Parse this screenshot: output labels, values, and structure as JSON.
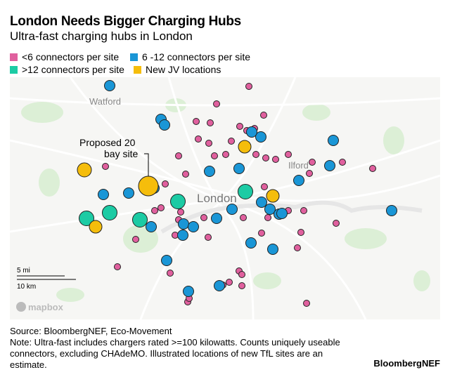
{
  "title": "London Needs Bigger Charging Hubs",
  "subtitle": "Ultra-fast charging hubs in London",
  "legend": [
    {
      "label": "<6 connectors per site",
      "color": "#e0609e"
    },
    {
      "label": "6 -12 connectors per site",
      "color": "#1a96d6"
    },
    {
      "label": ">12 connectors per site",
      "color": "#1ccba4"
    },
    {
      "label": "New JV locations",
      "color": "#f5bd0b"
    }
  ],
  "map": {
    "places": {
      "watford": "Watford",
      "london": "London",
      "ilford": "Ilford"
    },
    "annotation": "Proposed 20\nbay site",
    "annotation_line1": "Proposed 20",
    "annotation_line2": "bay site",
    "scale": {
      "miles": "5 mi",
      "km": "10 km"
    },
    "attribution": "mapbox"
  },
  "source": "Source: BloombergNEF, Eco-Movement",
  "note": "Note: Ultra-fast includes chargers rated >=100 kilowatts. Counts uniquely useable connectors, excluding CHAdeMO. Illustrated locations of new TfL sites are an estimate.",
  "brand": "BloombergNEF"
}
